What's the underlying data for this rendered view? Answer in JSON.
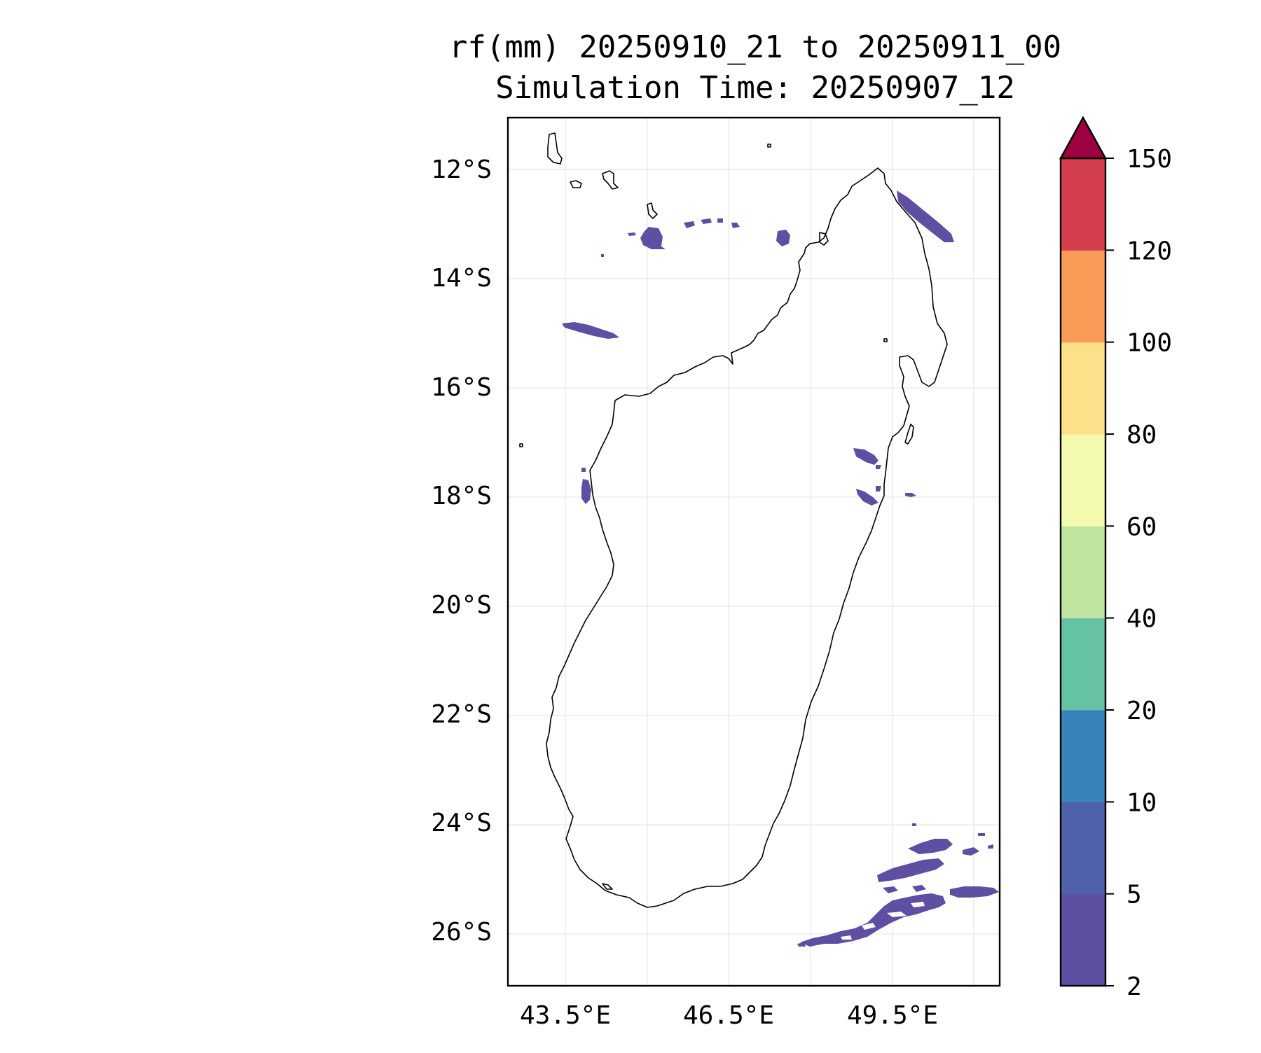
{
  "title_line1": "rf(mm) 20250910_21 to 20250911_00",
  "title_line2": "Simulation Time: 20250907_12",
  "map": {
    "lat_labels": [
      "12°S",
      "14°S",
      "16°S",
      "18°S",
      "20°S",
      "22°S",
      "24°S",
      "26°S"
    ],
    "lon_labels": [
      "43.5°E",
      "46.5°E",
      "49.5°E"
    ],
    "coastline_color": "#000000",
    "gridline_color": "#e6e6e6"
  },
  "colorbar": {
    "tick_labels": [
      "2",
      "5",
      "10",
      "20",
      "40",
      "60",
      "80",
      "100",
      "120",
      "150"
    ],
    "bins": [
      {
        "from": 2,
        "to": 5,
        "color": "#5e4fa2"
      },
      {
        "from": 5,
        "to": 10,
        "color": "#4f61aa"
      },
      {
        "from": 10,
        "to": 20,
        "color": "#3983bb"
      },
      {
        "from": 20,
        "to": 40,
        "color": "#66c2a5"
      },
      {
        "from": 40,
        "to": 60,
        "color": "#bfe5a0"
      },
      {
        "from": 60,
        "to": 80,
        "color": "#f3faad"
      },
      {
        "from": 80,
        "to": 100,
        "color": "#fee08b"
      },
      {
        "from": 100,
        "to": 120,
        "color": "#fa9b58"
      },
      {
        "from": 120,
        "to": 150,
        "color": "#d53e4f"
      }
    ],
    "extend_color": "#9e0142"
  },
  "rain_color": "#5e4fa2"
}
